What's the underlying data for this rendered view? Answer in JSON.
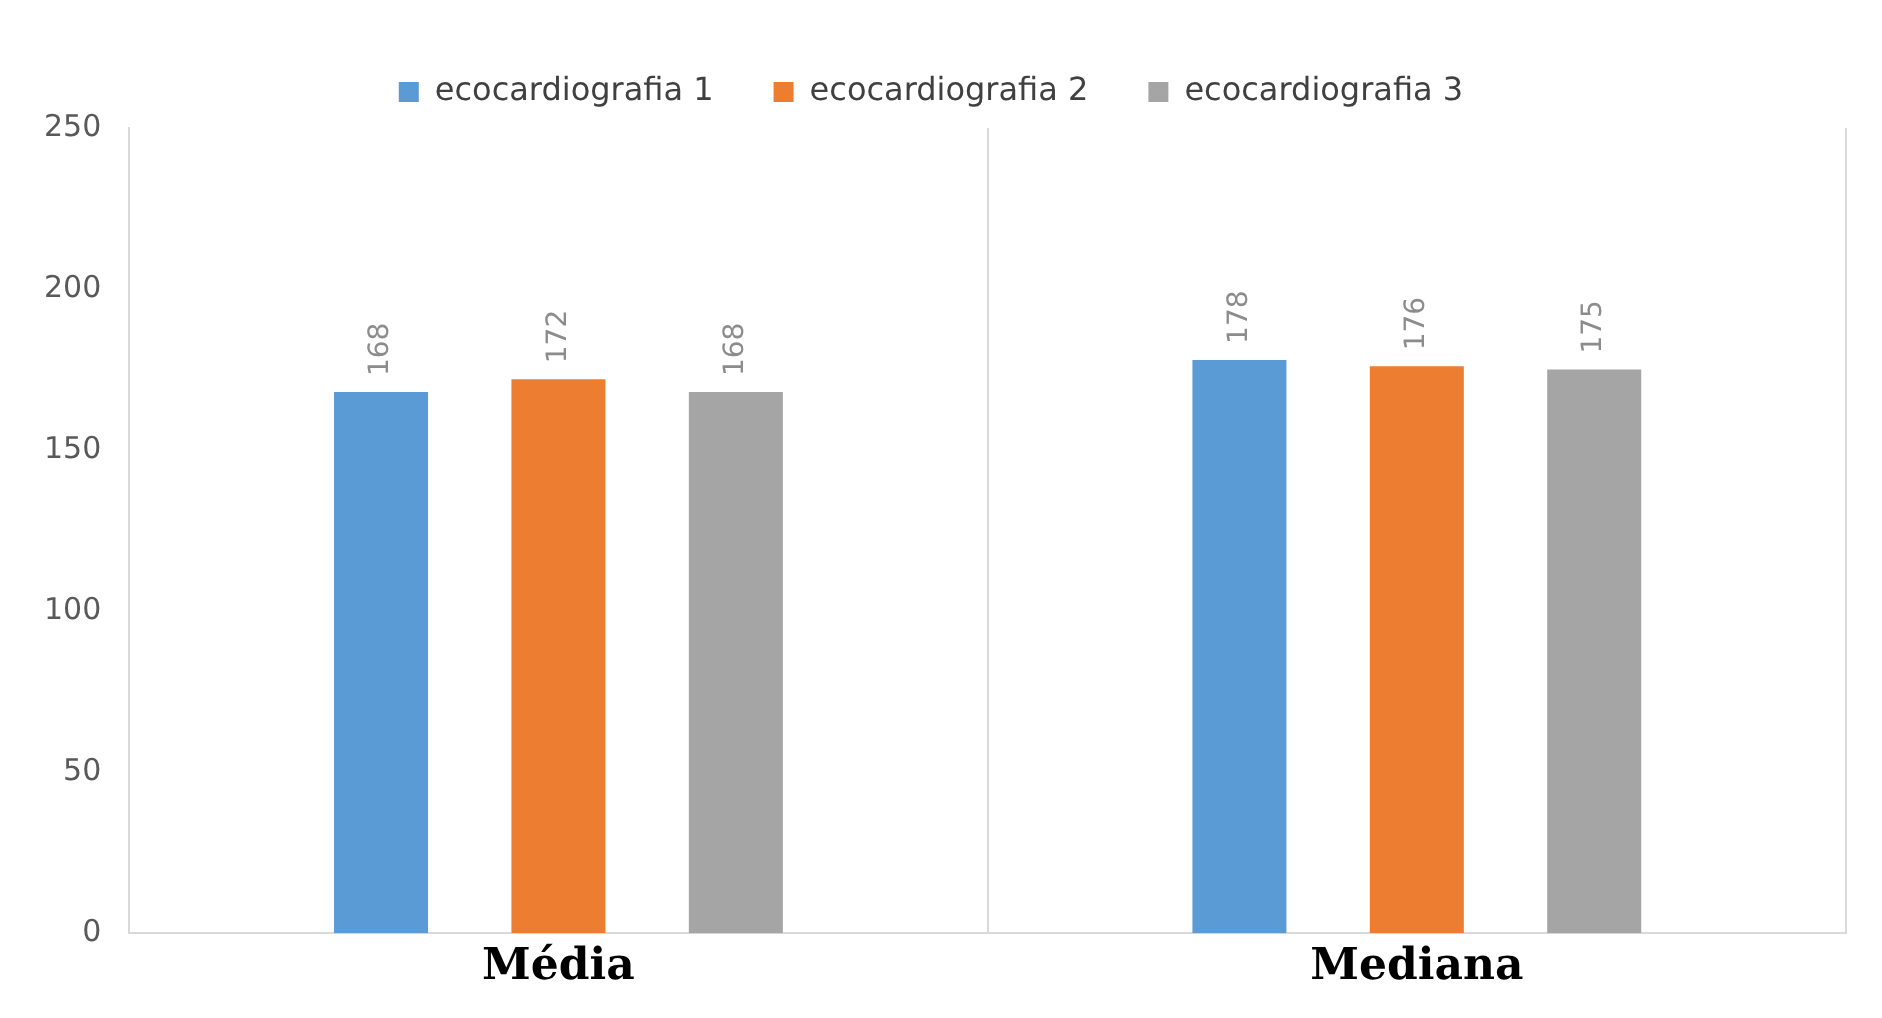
{
  "chart_data": {
    "type": "bar",
    "categories": [
      "Média",
      "Mediana"
    ],
    "series": [
      {
        "name": "ecocardiografia 1",
        "color": "#5b9bd5",
        "values": [
          168,
          178
        ]
      },
      {
        "name": "ecocardiografia 2",
        "color": "#ed7d31",
        "values": [
          172,
          176
        ]
      },
      {
        "name": "ecocardiografia 3",
        "color": "#a5a5a5",
        "values": [
          168,
          175
        ]
      }
    ],
    "ylim": [
      0,
      250
    ],
    "yticks": [
      0,
      50,
      100,
      150,
      200,
      250
    ],
    "grid": "x",
    "legend": "top",
    "data_labels": true
  }
}
